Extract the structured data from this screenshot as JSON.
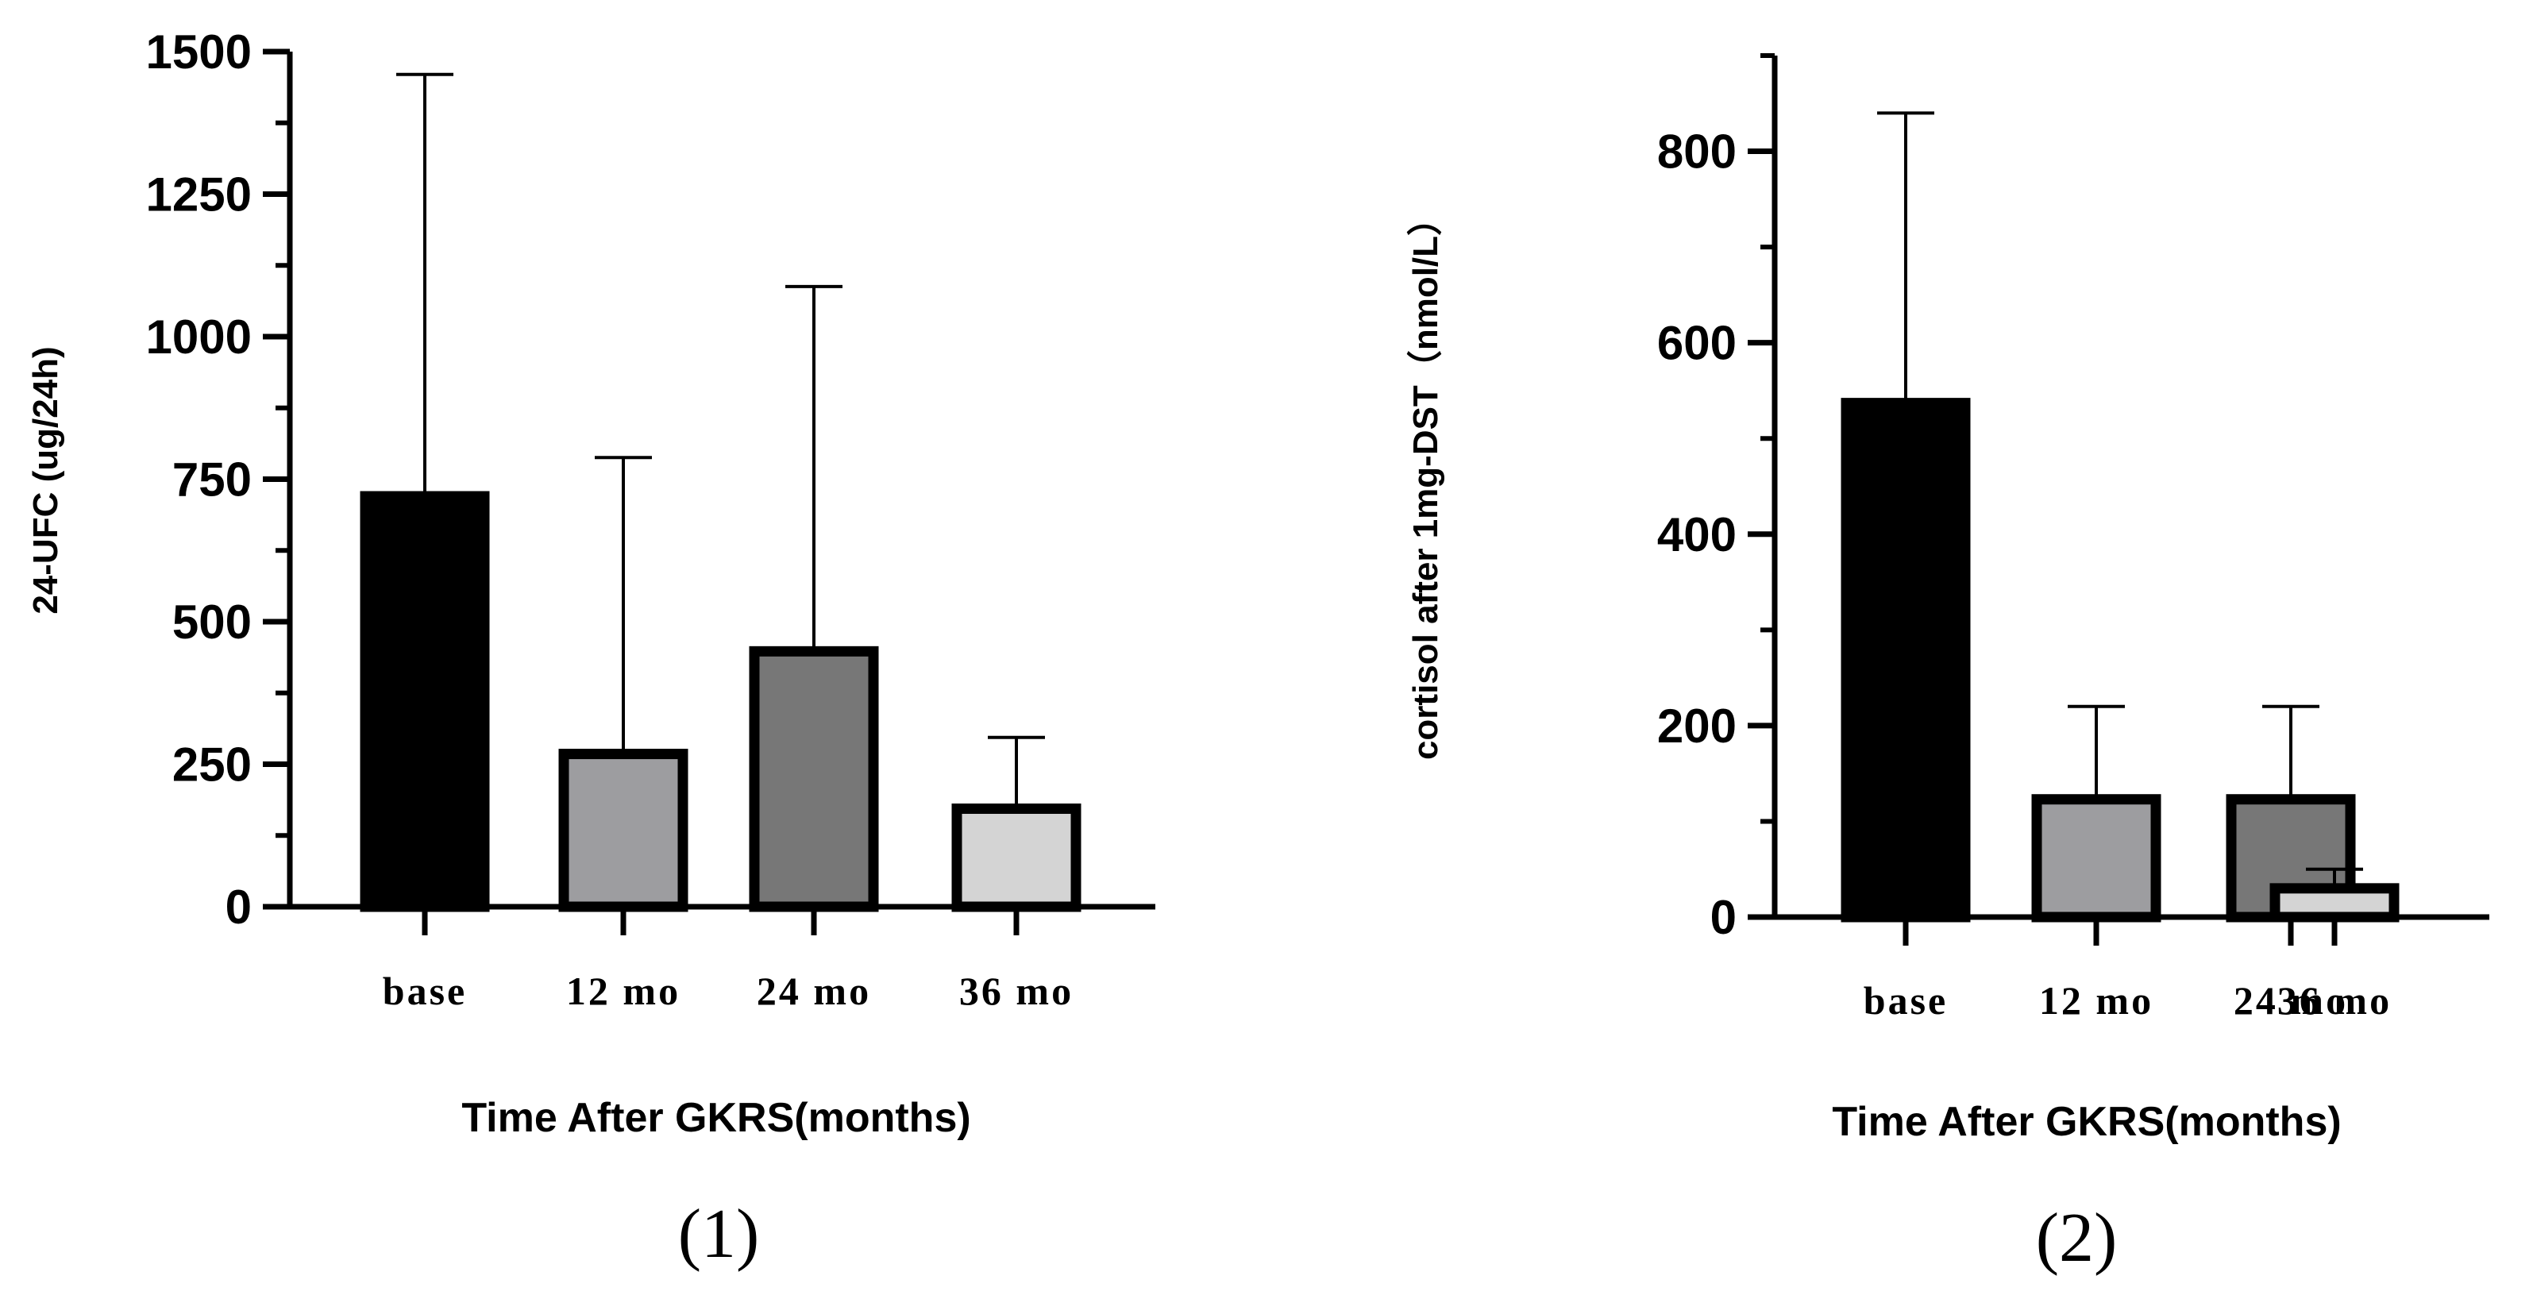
{
  "chart_data": [
    {
      "type": "bar",
      "panel_label": "(1)",
      "ylabel": "24-UFC (ug/24h)",
      "xlabel": "Time After GKRS(months)",
      "categories": [
        "base",
        "12 mo",
        "24 mo",
        "36 mo"
      ],
      "values": [
        720,
        268,
        448,
        172
      ],
      "error_upper": [
        1460,
        788,
        1088,
        297
      ],
      "ylim": [
        0,
        1500
      ],
      "yticks": [
        0,
        250,
        500,
        750,
        1000,
        1250,
        1500
      ],
      "bar_colors": [
        "#000000",
        "#9d9da0",
        "#777777",
        "#d4d4d4"
      ]
    },
    {
      "type": "bar",
      "panel_label": "(2)",
      "ylabel": "cortisol after 1mg-DST（nmol/L）",
      "xlabel": "Time After GKRS(months)",
      "categories": [
        "base",
        "12 mo",
        "24 mo",
        "36 mo"
      ],
      "values": [
        537,
        123,
        123,
        30
      ],
      "error_upper": [
        840,
        220,
        220,
        50
      ],
      "ylim": [
        0,
        900
      ],
      "yticks": [
        0,
        200,
        400,
        600,
        800
      ],
      "bar_colors": [
        "#000000",
        "#9d9da0",
        "#777777",
        "#d4d4d4"
      ]
    }
  ]
}
